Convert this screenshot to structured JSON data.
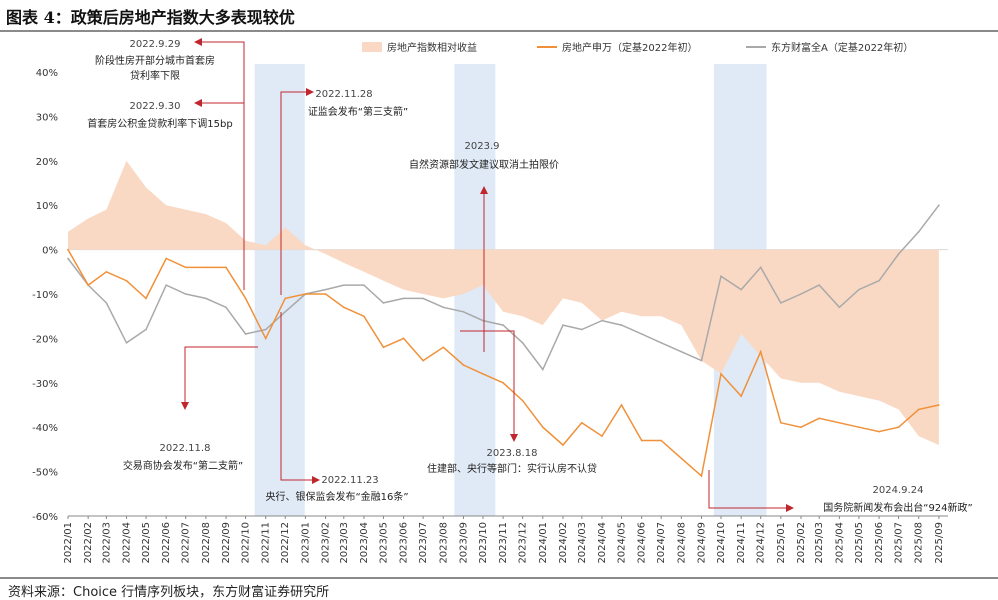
{
  "figure": {
    "title": "图表 4：政策后房地产指数大多表现较优",
    "source": "资料来源：Choice 行情序列板块，东方财富证券研究所"
  },
  "colors": {
    "area": "#fad9c4",
    "property_index": "#f0913a",
    "eastmoney_a": "#a9a9a9",
    "highlight": "#dfeaf6",
    "annotation": "#c0262d"
  },
  "chart_data": {
    "type": "line",
    "ylim": [
      -60,
      40
    ],
    "y_ticks": [
      "40%",
      "30%",
      "20%",
      "10%",
      "0%",
      "-10%",
      "-20%",
      "-30%",
      "-40%",
      "-50%",
      "-60%"
    ],
    "x_ticks": [
      "2022/01",
      "2022/02",
      "2022/03",
      "2022/04",
      "2022/05",
      "2022/06",
      "2022/07",
      "2022/08",
      "2022/09",
      "2022/10",
      "2022/11",
      "2022/12",
      "2023/01",
      "2023/02",
      "2023/03",
      "2023/04",
      "2023/05",
      "2023/06",
      "2023/07",
      "2023/08",
      "2023/09",
      "2023/10",
      "2023/11",
      "2023/12",
      "2024/01",
      "2024/02",
      "2024/03",
      "2024/04",
      "2024/05",
      "2024/06",
      "2024/07",
      "2024/08",
      "2024/09",
      "2024/10",
      "2024/11",
      "2024/12",
      "2025/01",
      "2025/02",
      "2025/03",
      "2025/04",
      "2025/05",
      "2025/06",
      "2025/07",
      "2025/08",
      "2025/09"
    ],
    "x_start": "2022-01",
    "highlights": [
      {
        "from": "2022-10-15",
        "to": "2022-12-31"
      },
      {
        "from": "2023-08-18",
        "to": "2023-10-20"
      },
      {
        "from": "2024-09-20",
        "to": "2024-12-10"
      }
    ],
    "series": [
      {
        "name": "房地产指数相对收益",
        "kind": "area",
        "x": [
          "2022-01",
          "2022-02",
          "2022-03",
          "2022-04",
          "2022-05",
          "2022-06",
          "2022-07",
          "2022-08",
          "2022-09",
          "2022-10",
          "2022-11",
          "2022-12",
          "2023-01",
          "2023-02",
          "2023-03",
          "2023-04",
          "2023-05",
          "2023-06",
          "2023-07",
          "2023-08",
          "2023-09",
          "2023-10",
          "2023-11",
          "2023-12",
          "2024-01",
          "2024-02",
          "2024-03",
          "2024-04",
          "2024-05",
          "2024-06",
          "2024-07",
          "2024-08",
          "2024-09",
          "2024-10",
          "2024-11",
          "2024-12",
          "2025-01",
          "2025-02",
          "2025-03",
          "2025-04",
          "2025-05",
          "2025-06",
          "2025-07",
          "2025-08",
          "2025-09"
        ],
        "values": [
          4,
          7,
          9,
          20,
          14,
          10,
          9,
          8,
          6,
          2,
          1,
          5,
          1,
          -1,
          -3,
          -5,
          -7,
          -9,
          -10,
          -11,
          -10,
          -8,
          -14,
          -15,
          -17,
          -11,
          -12,
          -16,
          -14,
          -15,
          -15,
          -17,
          -25,
          -28,
          -19,
          -24,
          -29,
          -30,
          -30,
          -32,
          -33,
          -34,
          -36,
          -42,
          -44
        ]
      },
      {
        "name": "房地产申万（定基2022年初）",
        "kind": "line",
        "x": [
          "2022-01",
          "2022-02",
          "2022-03",
          "2022-04",
          "2022-05",
          "2022-06",
          "2022-07",
          "2022-08",
          "2022-09",
          "2022-10",
          "2022-11",
          "2022-12",
          "2023-01",
          "2023-02",
          "2023-03",
          "2023-04",
          "2023-05",
          "2023-06",
          "2023-07",
          "2023-08",
          "2023-09",
          "2023-10",
          "2023-11",
          "2023-12",
          "2024-01",
          "2024-02",
          "2024-03",
          "2024-04",
          "2024-05",
          "2024-06",
          "2024-07",
          "2024-08",
          "2024-09",
          "2024-10",
          "2024-11",
          "2024-12",
          "2025-01",
          "2025-02",
          "2025-03",
          "2025-04",
          "2025-05",
          "2025-06",
          "2025-07",
          "2025-08",
          "2025-09"
        ],
        "values": [
          0,
          -8,
          -5,
          -7,
          -11,
          -2,
          -4,
          -4,
          -4,
          -11,
          -20,
          -11,
          -10,
          -10,
          -13,
          -15,
          -22,
          -20,
          -25,
          -22,
          -26,
          -28,
          -30,
          -34,
          -40,
          -44,
          -39,
          -42,
          -35,
          -43,
          -43,
          -47,
          -51,
          -28,
          -33,
          -23,
          -39,
          -40,
          -38,
          -39,
          -40,
          -41,
          -40,
          -36,
          -35
        ]
      },
      {
        "name": "东方财富全A（定基2022年初）",
        "kind": "line",
        "x": [
          "2022-01",
          "2022-02",
          "2022-03",
          "2022-04",
          "2022-05",
          "2022-06",
          "2022-07",
          "2022-08",
          "2022-09",
          "2022-10",
          "2022-11",
          "2022-12",
          "2023-01",
          "2023-02",
          "2023-03",
          "2023-04",
          "2023-05",
          "2023-06",
          "2023-07",
          "2023-08",
          "2023-09",
          "2023-10",
          "2023-11",
          "2023-12",
          "2024-01",
          "2024-02",
          "2024-03",
          "2024-04",
          "2024-05",
          "2024-06",
          "2024-07",
          "2024-08",
          "2024-09",
          "2024-10",
          "2024-11",
          "2024-12",
          "2025-01",
          "2025-02",
          "2025-03",
          "2025-04",
          "2025-05",
          "2025-06",
          "2025-07",
          "2025-08",
          "2025-09"
        ],
        "values": [
          -2,
          -8,
          -12,
          -21,
          -18,
          -8,
          -10,
          -11,
          -13,
          -19,
          -18,
          -14,
          -10,
          -9,
          -8,
          -8,
          -12,
          -11,
          -11,
          -13,
          -14,
          -16,
          -17,
          -21,
          -27,
          -17,
          -18,
          -16,
          -17,
          -19,
          -21,
          -23,
          -25,
          -6,
          -9,
          -4,
          -12,
          -10,
          -8,
          -13,
          -9,
          -7,
          -1,
          4,
          10
        ]
      }
    ],
    "legend_position": "top"
  },
  "annotations": [
    {
      "date": "2022.9.29",
      "text": "阶段性房开部分城市首套房贷利率下限"
    },
    {
      "date": "2022.9.30",
      "text": "首套房公积金贷款利率下调15bp"
    },
    {
      "date": "2022.11.28",
      "text": "证监会发布“第三支箭”"
    },
    {
      "date": "2023.9",
      "text": "自然资源部发文建议取消土拍限价"
    },
    {
      "date": "2022.11.8",
      "text": "交易商协会发布“第二支箭”"
    },
    {
      "date": "2022.11.23",
      "text": "央行、银保监会发布“金融16条”"
    },
    {
      "date": "2023.8.18",
      "text": "住建部、央行等部门：实行认房不认贷"
    },
    {
      "date": "2024.9.24",
      "text": "国务院新闻发布会出台“924新政”"
    }
  ]
}
